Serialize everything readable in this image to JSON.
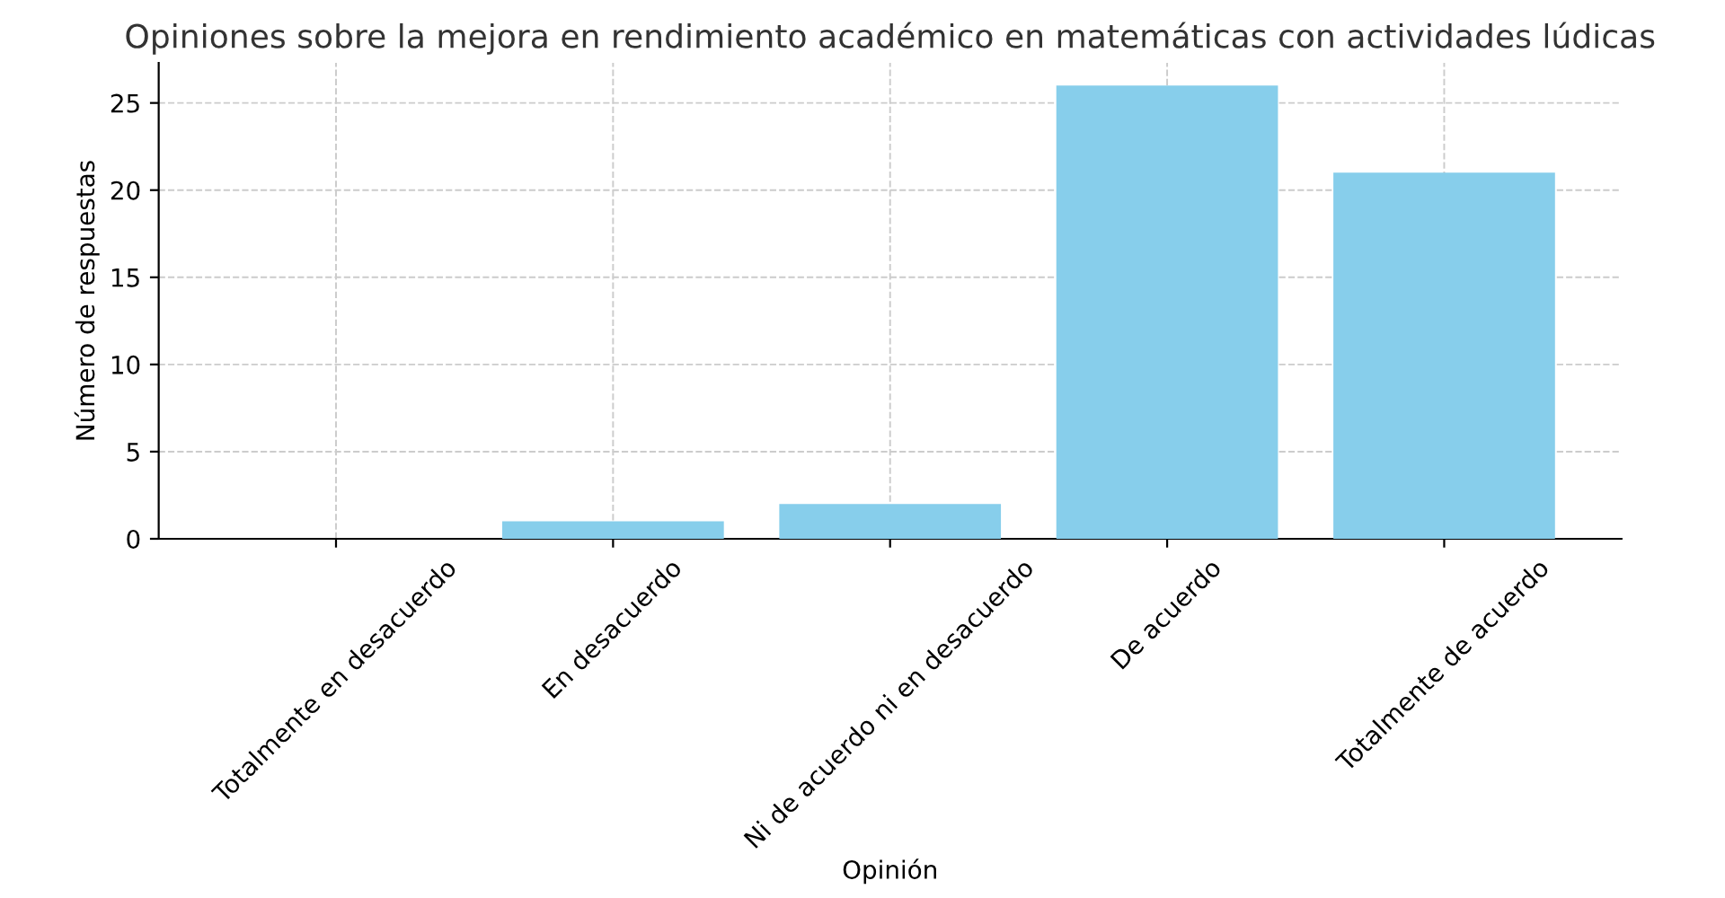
{
  "chart_data": {
    "type": "bar",
    "title": "Opiniones sobre la mejora en rendimiento académico en matemáticas con actividades lúdicas",
    "xlabel": "Opinión",
    "ylabel": "Número de respuestas",
    "categories": [
      "Totalmente en desacuerdo",
      "En desacuerdo",
      "Ni de acuerdo ni en desacuerdo",
      "De acuerdo",
      "Totalmente de acuerdo"
    ],
    "values": [
      0,
      1,
      2,
      26,
      21
    ],
    "color": "#87ceeb",
    "ylim": [
      0,
      27.3
    ],
    "yticks": [
      0,
      5,
      10,
      15,
      20,
      25
    ],
    "grid": true,
    "legend": false
  }
}
